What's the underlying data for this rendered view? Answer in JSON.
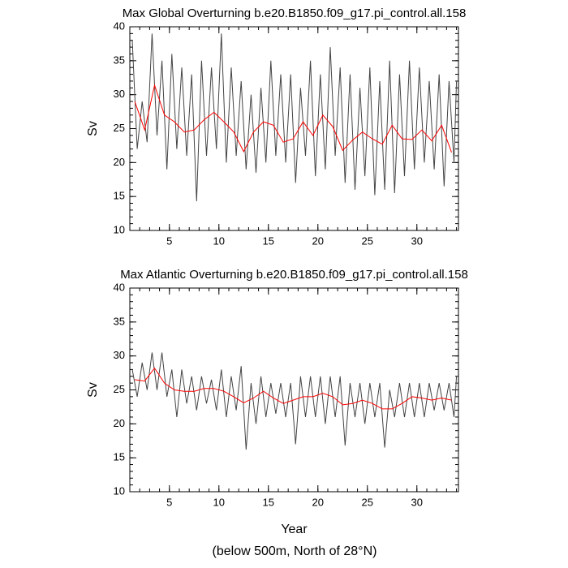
{
  "chart_data": [
    {
      "type": "line",
      "title": "Max Global Overturning b.e20.B1850.f09_g17.pi_control.all.158",
      "ylabel": "Sv",
      "xlim": [
        1,
        34.2
      ],
      "ylim": [
        10,
        40
      ],
      "xticks": [
        5,
        10,
        15,
        20,
        25,
        30
      ],
      "yticks": [
        10,
        15,
        20,
        25,
        30,
        35,
        40
      ],
      "xminorticks": [
        1,
        2,
        3,
        4,
        5,
        6,
        7,
        8,
        9,
        10,
        11,
        12,
        13,
        14,
        15,
        16,
        17,
        18,
        19,
        20,
        21,
        22,
        23,
        24,
        25,
        26,
        27,
        28,
        29,
        30,
        31,
        32,
        33,
        34
      ],
      "yminorticks": [
        10,
        11,
        12,
        13,
        14,
        15,
        16,
        17,
        18,
        19,
        20,
        21,
        22,
        23,
        24,
        25,
        26,
        27,
        28,
        29,
        30,
        31,
        32,
        33,
        34,
        35,
        36,
        37,
        38,
        39,
        40
      ],
      "series": [
        {
          "color": "#444444",
          "x": [
            1.25,
            1.75,
            2.25,
            2.75,
            3.25,
            3.75,
            4.25,
            4.75,
            5.25,
            5.75,
            6.25,
            6.75,
            7.25,
            7.75,
            8.25,
            8.75,
            9.25,
            9.75,
            10.25,
            10.75,
            11.25,
            11.75,
            12.25,
            12.75,
            13.25,
            13.75,
            14.25,
            14.75,
            15.25,
            15.75,
            16.25,
            16.75,
            17.25,
            17.75,
            18.25,
            18.75,
            19.25,
            19.75,
            20.25,
            20.75,
            21.25,
            21.75,
            22.25,
            22.75,
            23.25,
            23.75,
            24.25,
            24.75,
            25.25,
            25.75,
            26.25,
            26.75,
            27.25,
            27.75,
            28.25,
            28.75,
            29.25,
            29.75,
            30.25,
            30.75,
            31.25,
            31.75,
            32.25,
            32.75,
            33.25,
            33.75,
            34
          ],
          "values": [
            38,
            22,
            29,
            23,
            39,
            24,
            35,
            19,
            36,
            22,
            34,
            21,
            33,
            14.3,
            35,
            21,
            34,
            22,
            39,
            20,
            34,
            21,
            32,
            19,
            30,
            18.5,
            31,
            20,
            35,
            21,
            33,
            20,
            33,
            17,
            31,
            21,
            35,
            18,
            33,
            19,
            37,
            21,
            34,
            17,
            33,
            16,
            31,
            18,
            34,
            15.2,
            32,
            16,
            35,
            15.5,
            33,
            18,
            35,
            19,
            34,
            20,
            32,
            19,
            33,
            16.5,
            32,
            20,
            32
          ]
        },
        {
          "color": "#ff0000",
          "x": [
            1.5,
            2.5,
            3.5,
            4.5,
            5.5,
            6.5,
            7.5,
            8.5,
            9.5,
            10.5,
            11.5,
            12.5,
            13.5,
            14.5,
            15.5,
            16.5,
            17.5,
            18.5,
            19.5,
            20.5,
            21.5,
            22.5,
            23.5,
            24.5,
            25.5,
            26.5,
            27.5,
            28.5,
            29.5,
            30.5,
            31.5,
            32.5,
            33.5
          ],
          "values": [
            29,
            24.8,
            31.4,
            27,
            26,
            24.5,
            24.8,
            26.3,
            27.4,
            26,
            24.5,
            21.6,
            24.5,
            26,
            25.5,
            23,
            23.5,
            26,
            24,
            27,
            25.3,
            21.8,
            23.3,
            24.5,
            23.5,
            22.7,
            25.5,
            23.5,
            23.4,
            24.8,
            23.2,
            25.5,
            21.5
          ]
        }
      ]
    },
    {
      "type": "line",
      "title": "Max Atlantic Overturning b.e20.B1850.f09_g17.pi_control.all.158",
      "ylabel": "Sv",
      "xlabel": "Year",
      "xlim": [
        1,
        34.2
      ],
      "ylim": [
        10,
        40
      ],
      "xticks": [
        5,
        10,
        15,
        20,
        25,
        30
      ],
      "yticks": [
        10,
        15,
        20,
        25,
        30,
        35,
        40
      ],
      "xminorticks": [
        1,
        2,
        3,
        4,
        5,
        6,
        7,
        8,
        9,
        10,
        11,
        12,
        13,
        14,
        15,
        16,
        17,
        18,
        19,
        20,
        21,
        22,
        23,
        24,
        25,
        26,
        27,
        28,
        29,
        30,
        31,
        32,
        33,
        34
      ],
      "yminorticks": [
        10,
        11,
        12,
        13,
        14,
        15,
        16,
        17,
        18,
        19,
        20,
        21,
        22,
        23,
        24,
        25,
        26,
        27,
        28,
        29,
        30,
        31,
        32,
        33,
        34,
        35,
        36,
        37,
        38,
        39,
        40
      ],
      "series": [
        {
          "color": "#444444",
          "x": [
            1.25,
            1.75,
            2.25,
            2.75,
            3.25,
            3.75,
            4.25,
            4.75,
            5.25,
            5.75,
            6.25,
            6.75,
            7.25,
            7.75,
            8.25,
            8.75,
            9.25,
            9.75,
            10.25,
            10.75,
            11.25,
            11.75,
            12.25,
            12.75,
            13.25,
            13.75,
            14.25,
            14.75,
            15.25,
            15.75,
            16.25,
            16.75,
            17.25,
            17.75,
            18.25,
            18.75,
            19.25,
            19.75,
            20.25,
            20.75,
            21.25,
            21.75,
            22.25,
            22.75,
            23.25,
            23.75,
            24.25,
            24.75,
            25.25,
            25.75,
            26.25,
            26.75,
            27.25,
            27.75,
            28.25,
            28.75,
            29.25,
            29.75,
            30.25,
            30.75,
            31.25,
            31.75,
            32.25,
            32.75,
            33.25,
            33.75,
            34
          ],
          "values": [
            28,
            24,
            29,
            25,
            30.5,
            25,
            30.5,
            24,
            28,
            21,
            28,
            23,
            27,
            22,
            27,
            23,
            26.5,
            22,
            28,
            21,
            27,
            22,
            28.5,
            16.2,
            26,
            20,
            27,
            21,
            26,
            21.5,
            26,
            21,
            26,
            17,
            27,
            21,
            27,
            21,
            27,
            20,
            27,
            21,
            27,
            16.8,
            26,
            21,
            26,
            20,
            26,
            21,
            26,
            16.5,
            25,
            21,
            26,
            21,
            26,
            21,
            26,
            21,
            26,
            22,
            26,
            22,
            26,
            21,
            27
          ]
        },
        {
          "color": "#ff0000",
          "x": [
            1.5,
            2.5,
            3.5,
            4.5,
            5.5,
            6.5,
            7.5,
            8.5,
            9.5,
            10.5,
            11.5,
            12.5,
            13.5,
            14.5,
            15.5,
            16.5,
            17.5,
            18.5,
            19.5,
            20.5,
            21.5,
            22.5,
            23.5,
            24.5,
            25.5,
            26.5,
            27.5,
            28.5,
            29.5,
            30.5,
            31.5,
            32.5,
            33.5
          ],
          "values": [
            26.5,
            26.3,
            28.2,
            26,
            25,
            24.8,
            24.8,
            25.2,
            25.2,
            24.8,
            24,
            23.1,
            23.8,
            24.8,
            23.8,
            23,
            23.5,
            24,
            24,
            24.5,
            24,
            22.8,
            23,
            23.5,
            23,
            22.2,
            22.2,
            23,
            24,
            23.8,
            23.5,
            23.8,
            23.5
          ]
        }
      ]
    }
  ],
  "footnote": "(below 500m, North of 28°N)"
}
